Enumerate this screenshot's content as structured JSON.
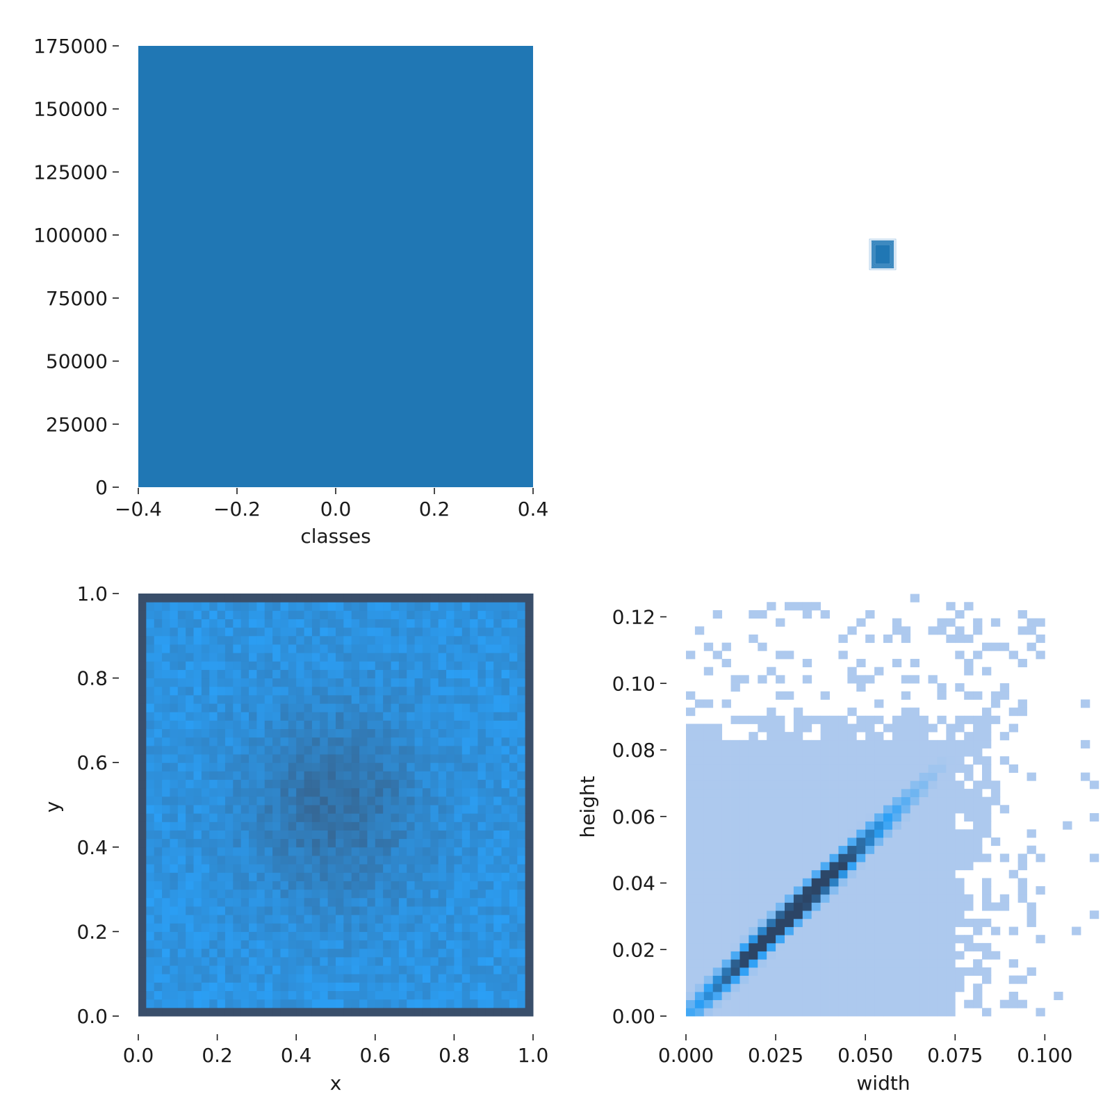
{
  "colors": {
    "bar": "#2077b4",
    "heat_low": "#2b9ff5",
    "heat_high": "#3a4f6b",
    "wh_light": "#adc9ee",
    "wh_mid": "#2b9ff5",
    "wh_dark": "#2c4566"
  },
  "chart_data": [
    {
      "id": "classes-hist",
      "type": "bar",
      "title": "",
      "xlabel": "classes",
      "ylabel": "",
      "categories": [
        "0"
      ],
      "values": [
        175000
      ],
      "xlim": [
        -0.4,
        0.4
      ],
      "ylim": [
        0,
        175000
      ],
      "xticks": [
        -0.4,
        -0.2,
        0.0,
        0.2,
        0.4
      ],
      "xtick_labels": [
        "−0.4",
        "−0.2",
        "0.0",
        "0.2",
        "0.4"
      ],
      "yticks": [
        0,
        25000,
        50000,
        75000,
        100000,
        125000,
        150000,
        175000
      ],
      "ytick_labels": [
        "0",
        "25000",
        "50000",
        "75000",
        "100000",
        "125000",
        "150000",
        "175000"
      ],
      "grid": false
    },
    {
      "id": "box-overlay",
      "type": "scatter",
      "title": "",
      "note_marker": "overlaid bounding-box rectangles centered near the middle of the panel",
      "x": [
        0.5
      ],
      "y": [
        0.5
      ],
      "grid": false
    },
    {
      "id": "xy-hist",
      "type": "heatmap",
      "title": "",
      "xlabel": "x",
      "ylabel": "y",
      "xlim": [
        0.0,
        1.0
      ],
      "ylim": [
        0.0,
        1.0
      ],
      "bins": 50,
      "xticks": [
        0.0,
        0.2,
        0.4,
        0.6,
        0.8,
        1.0
      ],
      "xtick_labels": [
        "0.0",
        "0.2",
        "0.4",
        "0.6",
        "0.8",
        "1.0"
      ],
      "yticks": [
        0.0,
        0.2,
        0.4,
        0.6,
        0.8,
        1.0
      ],
      "ytick_labels": [
        "0.0",
        "0.2",
        "0.4",
        "0.6",
        "0.8",
        "1.0"
      ],
      "pattern": "high density along the border and near center (0.5, 0.5); lower density elsewhere",
      "grid": false
    },
    {
      "id": "wh-hist",
      "type": "heatmap",
      "title": "",
      "xlabel": "width",
      "ylabel": "height",
      "xlim": [
        0.0,
        0.11
      ],
      "ylim": [
        0.0,
        0.127
      ],
      "xticks": [
        0.0,
        0.025,
        0.05,
        0.075,
        0.1
      ],
      "xtick_labels": [
        "0.000",
        "0.025",
        "0.050",
        "0.075",
        "0.100"
      ],
      "yticks": [
        0.0,
        0.02,
        0.04,
        0.06,
        0.08,
        0.1,
        0.12
      ],
      "ytick_labels": [
        "0.00",
        "0.02",
        "0.04",
        "0.06",
        "0.08",
        "0.10",
        "0.12"
      ],
      "ridge": [
        [
          0.015,
          0.015
        ],
        [
          0.025,
          0.027
        ],
        [
          0.035,
          0.036
        ],
        [
          0.045,
          0.046
        ],
        [
          0.055,
          0.058
        ],
        [
          0.065,
          0.068
        ]
      ],
      "grid": false
    }
  ]
}
